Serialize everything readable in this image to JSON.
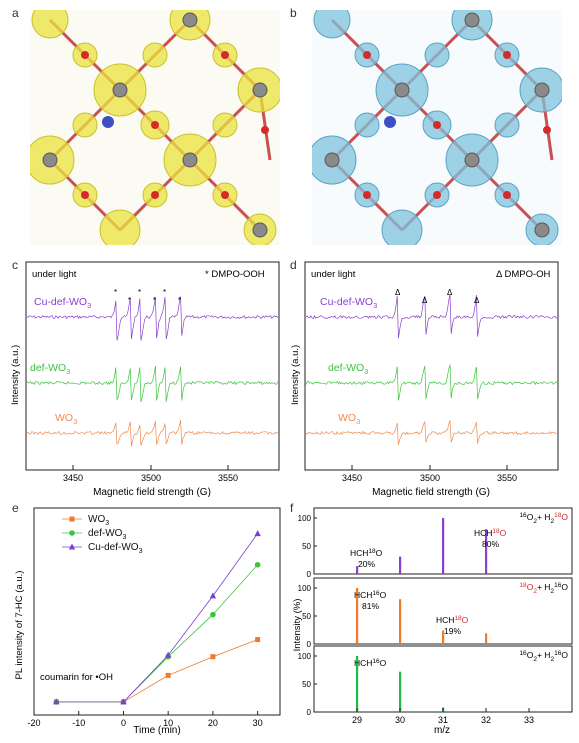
{
  "panels": {
    "a": {
      "label": "a"
    },
    "b": {
      "label": "b"
    },
    "c": {
      "label": "c",
      "condition": "under light",
      "marker_legend": "* DMPO-OOH",
      "marker": "*",
      "xlabel": "Magnetic field strength (G)",
      "ylabel": "Intensity (a.u.)",
      "xticks": [
        "3450",
        "3500",
        "3550"
      ],
      "traces": [
        {
          "name": "Cu-def-WO",
          "sub": "3",
          "color": "#8a3fd1"
        },
        {
          "name": "def-WO",
          "sub": "3",
          "color": "#3cc43c"
        },
        {
          "name": "WO",
          "sub": "3",
          "color": "#f08a4b"
        }
      ]
    },
    "d": {
      "label": "d",
      "condition": "under light",
      "marker_legend": "Δ DMPO-OH",
      "marker": "Δ",
      "xlabel": "Magnetic field strength (G)",
      "ylabel": "Intensity (a.u.)",
      "xticks": [
        "3450",
        "3500",
        "3550"
      ],
      "traces": [
        {
          "name": "Cu-def-WO",
          "sub": "3",
          "color": "#8a3fd1"
        },
        {
          "name": "def-WO",
          "sub": "3",
          "color": "#3cc43c"
        },
        {
          "name": "WO",
          "sub": "3",
          "color": "#f08a4b"
        }
      ]
    },
    "e": {
      "label": "e",
      "annotation": "coumarin for •OH"
    },
    "f": {
      "label": "f",
      "xlabel": "m/z",
      "ylabel": "Intensity (%)"
    }
  },
  "chart_data": [
    {
      "panel": "e",
      "type": "line",
      "xlabel": "Time (min)",
      "ylabel": "PL intensity of 7-HC (a.u.)",
      "xlim": [
        -20,
        35
      ],
      "xticks": [
        -20,
        -10,
        0,
        10,
        20,
        30
      ],
      "series": [
        {
          "name": "WO",
          "sub": "3",
          "color": "#f07a2a",
          "marker": "square",
          "x": [
            -15,
            0,
            10,
            20,
            30
          ],
          "y": [
            0.02,
            0.02,
            0.19,
            0.31,
            0.42
          ]
        },
        {
          "name": "def-WO",
          "sub": "3",
          "color": "#3cc43c",
          "marker": "circle",
          "x": [
            -15,
            0,
            10,
            20,
            30
          ],
          "y": [
            0.02,
            0.02,
            0.31,
            0.58,
            0.9
          ]
        },
        {
          "name": "Cu-def-WO",
          "sub": "3",
          "color": "#7a3fd1",
          "marker": "triangle",
          "x": [
            -15,
            0,
            10,
            20,
            30
          ],
          "y": [
            0.02,
            0.02,
            0.32,
            0.7,
            1.1
          ]
        }
      ]
    },
    {
      "panel": "f",
      "type": "bar",
      "xlabel": "m/z",
      "ylabel": "Intensity (%)",
      "xlim": [
        28,
        34
      ],
      "xticks": [
        "29",
        "30",
        "31",
        "32",
        "33"
      ],
      "subplots": [
        {
          "legend": "16O2 + H218O",
          "legend_parts": [
            "16",
            "O",
            "2",
            " + H",
            "2",
            "18",
            "O"
          ],
          "color": "#8a3fd1",
          "x": [
            29,
            30,
            31,
            32
          ],
          "y": [
            14,
            31,
            100,
            80
          ],
          "annotations": [
            {
              "text": "HCH18O",
              "value": "20%"
            },
            {
              "text": "HCH18O",
              "value": "80%"
            }
          ],
          "yticks": [
            "0",
            "50",
            "100"
          ]
        },
        {
          "legend": "18O2 + H216O",
          "color": "#f07a2a",
          "x": [
            29,
            30,
            31,
            32
          ],
          "y": [
            100,
            80,
            24,
            19
          ],
          "annotations": [
            {
              "text": "HCH16O",
              "value": "81%"
            },
            {
              "text": "HCH18O",
              "value": "19%"
            }
          ],
          "yticks": [
            "0",
            "50",
            "100"
          ]
        },
        {
          "legend": "16O2 + H216O",
          "color": "#22bb44",
          "x": [
            29,
            30,
            31
          ],
          "y": [
            100,
            72,
            8
          ],
          "annotations": [
            {
              "text": "HCH16O",
              "value": ""
            }
          ],
          "yticks": [
            "0",
            "50",
            "100"
          ]
        }
      ]
    }
  ]
}
